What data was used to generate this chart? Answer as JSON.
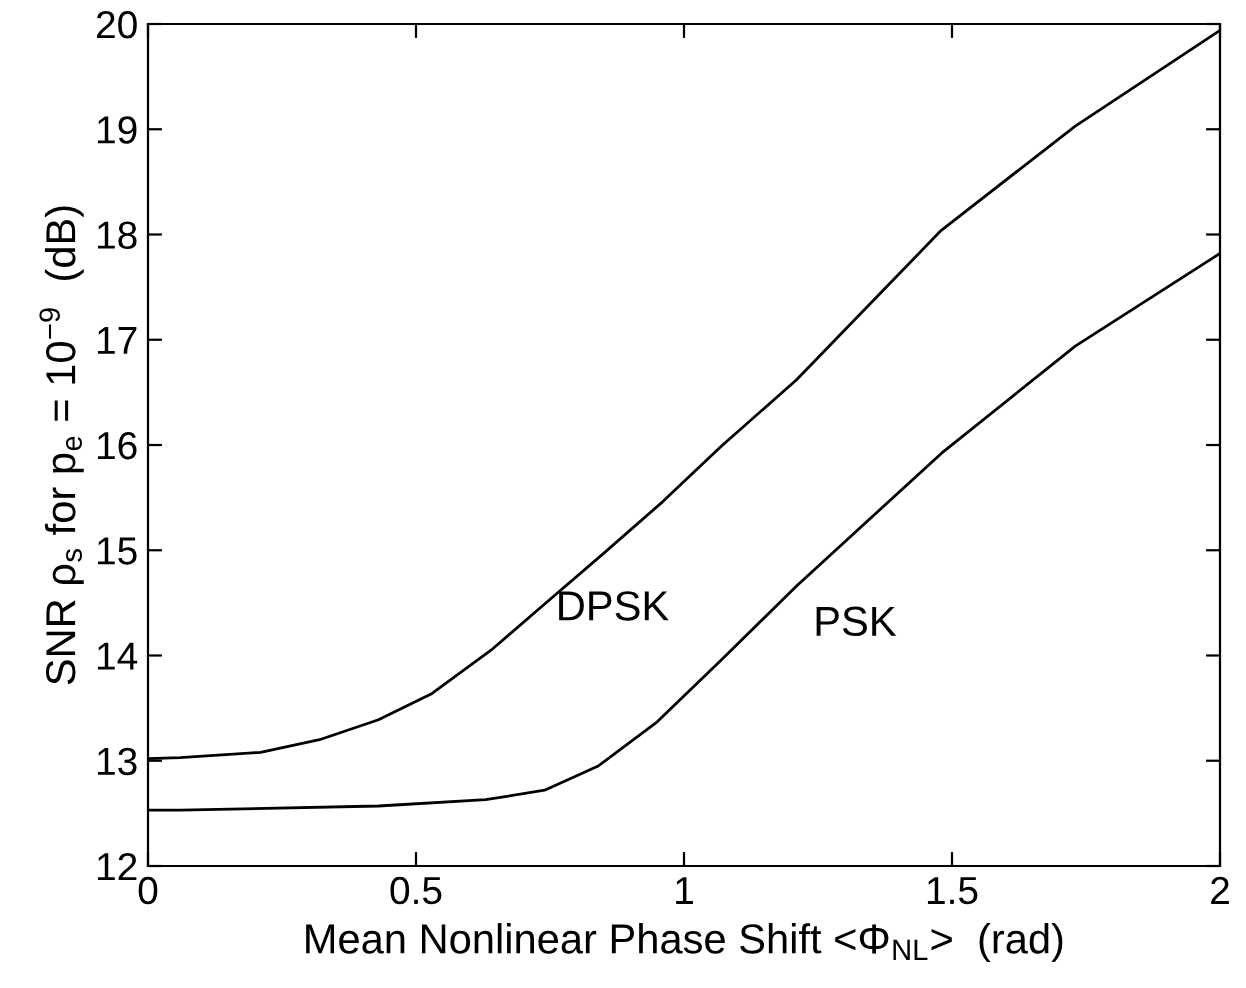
{
  "chart_data": {
    "type": "line",
    "xlabel": "Mean Nonlinear Phase Shift <Φ$_{NL}$>  (rad)",
    "ylabel": "SNR ρ$_{s}$ for p$_{e}$ = 10$^{−9}$  (dB)",
    "xlim": [
      0,
      2
    ],
    "ylim": [
      12,
      20
    ],
    "xticks": [
      0,
      0.5,
      1,
      1.5,
      2
    ],
    "yticks": [
      12,
      13,
      14,
      15,
      16,
      17,
      18,
      19,
      20
    ],
    "grid": false,
    "legend": false,
    "marker": "none",
    "line_style": "solid",
    "series": [
      {
        "name": "DPSK",
        "color": "#000000",
        "x": [
          0,
          0.06,
          0.21,
          0.32,
          0.43,
          0.53,
          0.64,
          0.74,
          0.85,
          0.96,
          1.07,
          1.21,
          1.48,
          1.73,
          2.0
        ],
        "values": [
          13.02,
          13.03,
          13.08,
          13.2,
          13.39,
          13.64,
          14.05,
          14.49,
          14.97,
          15.46,
          15.99,
          16.62,
          18.04,
          19.03,
          19.94
        ]
      },
      {
        "name": "PSK",
        "color": "#000000",
        "x": [
          0,
          0.06,
          0.43,
          0.63,
          0.74,
          0.84,
          0.95,
          1.07,
          1.21,
          1.48,
          1.73,
          2.0
        ],
        "values": [
          12.53,
          12.53,
          12.57,
          12.63,
          12.72,
          12.95,
          13.37,
          13.96,
          14.66,
          15.92,
          16.94,
          17.82
        ]
      }
    ]
  }
}
